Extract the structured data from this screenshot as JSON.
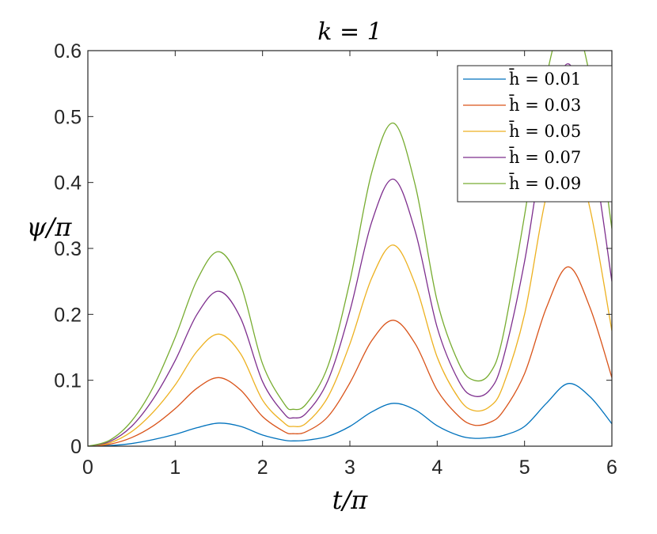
{
  "chart_data": {
    "type": "line",
    "title": "k = 1",
    "xlabel": "t/π",
    "ylabel": "ψ/π",
    "xlim": [
      0,
      6
    ],
    "ylim": [
      0,
      0.6
    ],
    "xticks": [
      "0",
      "1",
      "2",
      "3",
      "4",
      "5",
      "6"
    ],
    "yticks": [
      "0",
      "0.1",
      "0.2",
      "0.3",
      "0.4",
      "0.5",
      "0.6"
    ],
    "grid": false,
    "legend_position": "top-right",
    "x": [
      0,
      0.25,
      0.5,
      0.75,
      1.0,
      1.25,
      1.5,
      1.75,
      2.0,
      2.25,
      2.35,
      2.5,
      2.75,
      3.0,
      3.25,
      3.5,
      3.75,
      4.0,
      4.25,
      4.42,
      4.6,
      4.75,
      5.0,
      5.25,
      5.5,
      5.75,
      6.0
    ],
    "series": [
      {
        "name": "h̄ = 0.01",
        "color": "#0072BD",
        "values": [
          0,
          0.001,
          0.004,
          0.01,
          0.018,
          0.028,
          0.035,
          0.03,
          0.017,
          0.009,
          0.008,
          0.009,
          0.015,
          0.03,
          0.052,
          0.065,
          0.055,
          0.031,
          0.016,
          0.012,
          0.013,
          0.016,
          0.03,
          0.065,
          0.095,
          0.075,
          0.034
        ]
      },
      {
        "name": "h̄ = 0.03",
        "color": "#D95319",
        "values": [
          0,
          0.003,
          0.013,
          0.031,
          0.057,
          0.088,
          0.104,
          0.085,
          0.045,
          0.022,
          0.019,
          0.022,
          0.045,
          0.096,
          0.16,
          0.191,
          0.155,
          0.085,
          0.045,
          0.032,
          0.036,
          0.052,
          0.11,
          0.21,
          0.272,
          0.21,
          0.104
        ]
      },
      {
        "name": "h̄ = 0.05",
        "color": "#EDB120",
        "values": [
          0,
          0.005,
          0.022,
          0.052,
          0.093,
          0.144,
          0.17,
          0.14,
          0.07,
          0.035,
          0.03,
          0.035,
          0.075,
          0.155,
          0.255,
          0.305,
          0.245,
          0.135,
          0.072,
          0.054,
          0.06,
          0.09,
          0.2,
          0.38,
          0.47,
          0.36,
          0.175
        ]
      },
      {
        "name": "h̄ = 0.07",
        "color": "#7E2F8E",
        "values": [
          0,
          0.007,
          0.03,
          0.072,
          0.13,
          0.2,
          0.235,
          0.194,
          0.098,
          0.049,
          0.043,
          0.05,
          0.1,
          0.205,
          0.34,
          0.405,
          0.325,
          0.18,
          0.098,
          0.076,
          0.085,
          0.13,
          0.28,
          0.48,
          0.58,
          0.47,
          0.25
        ]
      },
      {
        "name": "h̄ = 0.09",
        "color": "#77AC30",
        "values": [
          0,
          0.009,
          0.038,
          0.09,
          0.165,
          0.252,
          0.295,
          0.245,
          0.125,
          0.064,
          0.056,
          0.064,
          0.122,
          0.25,
          0.415,
          0.49,
          0.395,
          0.22,
          0.125,
          0.1,
          0.11,
          0.165,
          0.35,
          0.56,
          0.66,
          0.56,
          0.33
        ]
      }
    ]
  }
}
